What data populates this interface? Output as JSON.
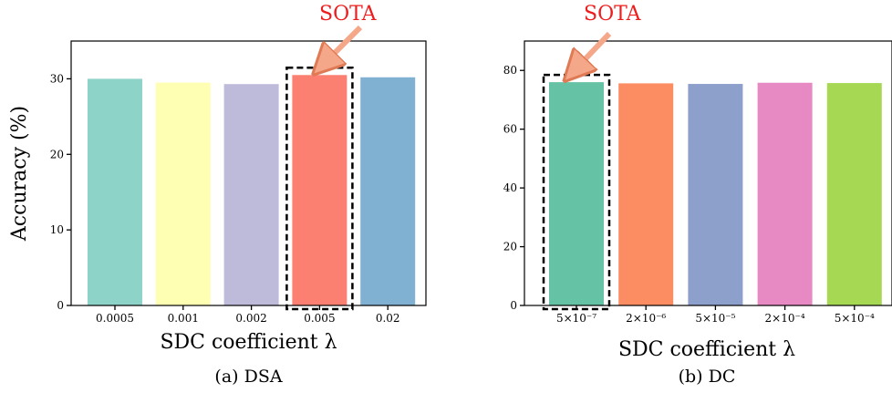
{
  "chart_data": [
    {
      "type": "bar",
      "caption": "(a) DSA",
      "xlabel": "SDC coefficient λ",
      "ylabel": "Accuracy (%)",
      "categories": [
        "0.0005",
        "0.001",
        "0.002",
        "0.005",
        "0.02"
      ],
      "values": [
        30.0,
        29.5,
        29.3,
        30.5,
        30.2
      ],
      "colors": [
        "#8dd3c7",
        "#ffffb3",
        "#bebada",
        "#fb8072",
        "#80b1d3"
      ],
      "ylim": [
        0,
        35
      ],
      "yticks": [
        "0",
        "10",
        "20",
        "30"
      ],
      "highlight_index": 3,
      "annotation": "SOTA",
      "grid": false
    },
    {
      "type": "bar",
      "caption": "(b) DC",
      "xlabel": "SDC coefficient λ",
      "ylabel": "",
      "categories": [
        "5×10⁻⁷",
        "2×10⁻⁶",
        "5×10⁻⁵",
        "2×10⁻⁴",
        "5×10⁻⁴"
      ],
      "values": [
        76.0,
        75.6,
        75.4,
        75.8,
        75.7
      ],
      "colors": [
        "#66c2a5",
        "#fc8d62",
        "#8da0cb",
        "#e78ac3",
        "#a6d854"
      ],
      "ylim": [
        0,
        90
      ],
      "yticks": [
        "0",
        "20",
        "40",
        "60",
        "80"
      ],
      "highlight_index": 0,
      "annotation": "SOTA",
      "grid": false
    }
  ]
}
